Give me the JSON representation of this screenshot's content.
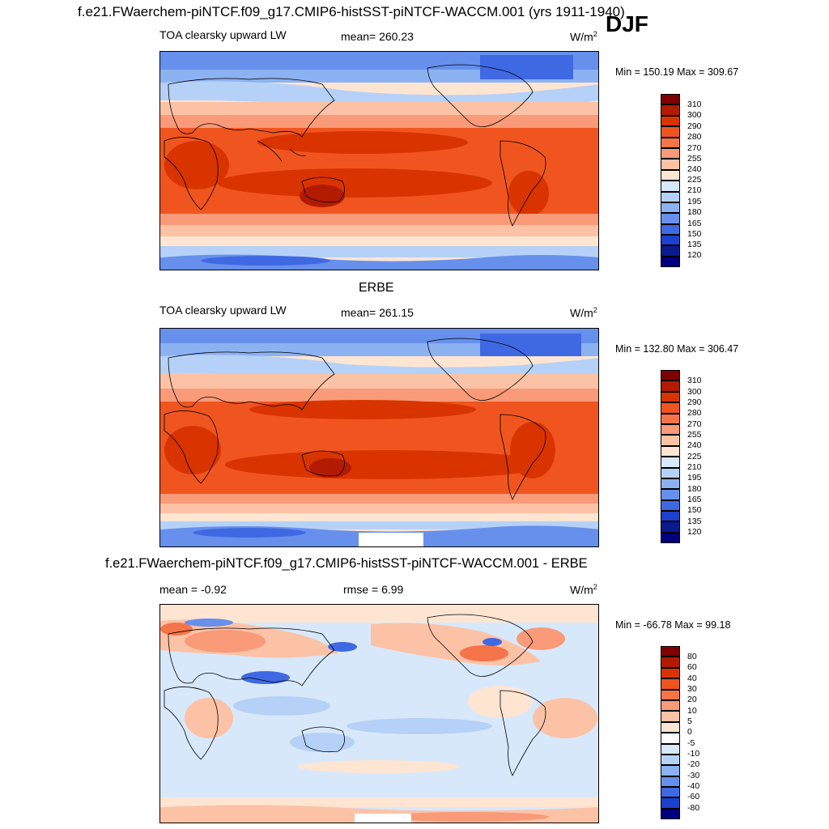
{
  "header": {
    "main_title": "f.e21.FWaerchem-piNTCF.f09_g17.CMIP6-histSST-piNTCF-WACCM.001 (yrs 1911-1940)",
    "season": "DJF"
  },
  "panels": [
    {
      "id": "model",
      "section_title": "",
      "left_label": "TOA clearsky upward LW",
      "center_label": "mean= 260.23",
      "unit": "W/m",
      "unit_exp": "2",
      "minmax": "Min = 150.19 Max = 309.67",
      "colorbar_levels": [
        "310",
        "300",
        "290",
        "280",
        "270",
        "255",
        "240",
        "225",
        "210",
        "195",
        "180",
        "165",
        "150",
        "135",
        "120"
      ]
    },
    {
      "id": "obs",
      "section_title": "ERBE",
      "left_label": "TOA clearsky upward LW",
      "center_label": "mean= 261.15",
      "unit": "W/m",
      "unit_exp": "2",
      "minmax": "Min = 132.80 Max = 306.47",
      "colorbar_levels": [
        "310",
        "300",
        "290",
        "280",
        "270",
        "255",
        "240",
        "225",
        "210",
        "195",
        "180",
        "165",
        "150",
        "135",
        "120"
      ]
    },
    {
      "id": "diff",
      "section_title": "f.e21.FWaerchem-piNTCF.f09_g17.CMIP6-histSST-piNTCF-WACCM.001 - ERBE",
      "left_label": "mean =  -0.92",
      "center_label": "rmse =   6.99",
      "unit": "W/m",
      "unit_exp": "2",
      "minmax": "Min = -66.78 Max =  99.18",
      "colorbar_levels": [
        "80",
        "60",
        "40",
        "30",
        "20",
        "10",
        "5",
        "0",
        "-5",
        "-10",
        "-20",
        "-30",
        "-40",
        "-60",
        "-80"
      ]
    }
  ],
  "colors": {
    "abs_scale": [
      "#7f0000",
      "#b31b00",
      "#d93400",
      "#f05520",
      "#f5744a",
      "#f99a78",
      "#fcc2a6",
      "#fee5d2",
      "#d8e8fb",
      "#b6d1f7",
      "#8cb2f2",
      "#6690ec",
      "#3f69e3",
      "#1d40cf",
      "#0a1a8f",
      "#00007f"
    ],
    "diff_scale": [
      "#7f0000",
      "#b31b00",
      "#d93400",
      "#f05520",
      "#f5744a",
      "#f99a78",
      "#fcc2a6",
      "#fee5d2",
      "#ffffff",
      "#d8e8fb",
      "#b6d1f7",
      "#8cb2f2",
      "#6690ec",
      "#3f69e3",
      "#1d40cf",
      "#0a1a8f",
      "#00007f"
    ]
  }
}
